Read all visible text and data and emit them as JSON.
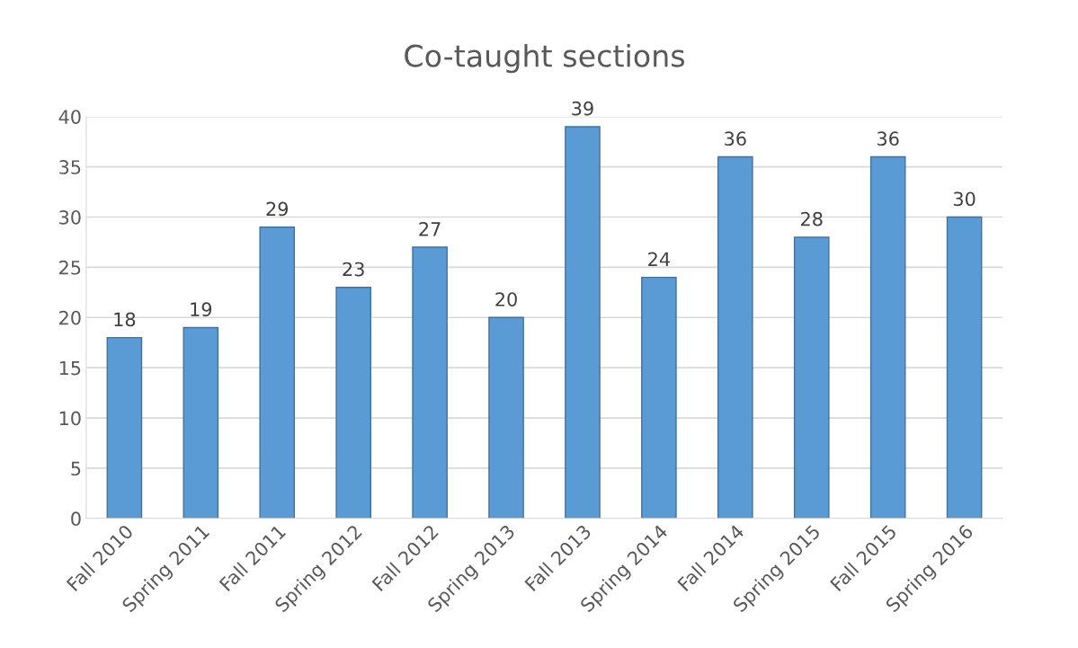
{
  "chart_data": {
    "type": "bar",
    "title": "Co-taught sections",
    "categories": [
      "Fall 2010",
      "Spring 2011",
      "Fall 2011",
      "Spring 2012",
      "Fall 2012",
      "Spring 2013",
      "Fall 2013",
      "Spring 2014",
      "Fall 2014",
      "Spring 2015",
      "Fall 2015",
      "Spring 2016"
    ],
    "values": [
      18,
      19,
      29,
      23,
      27,
      20,
      39,
      24,
      36,
      28,
      36,
      30
    ],
    "color": "#5b9bd5",
    "ylim": [
      0,
      40
    ],
    "yticks": [
      0,
      5,
      10,
      15,
      20,
      25,
      30,
      35,
      40
    ],
    "grid": "y",
    "data_labels": true
  }
}
